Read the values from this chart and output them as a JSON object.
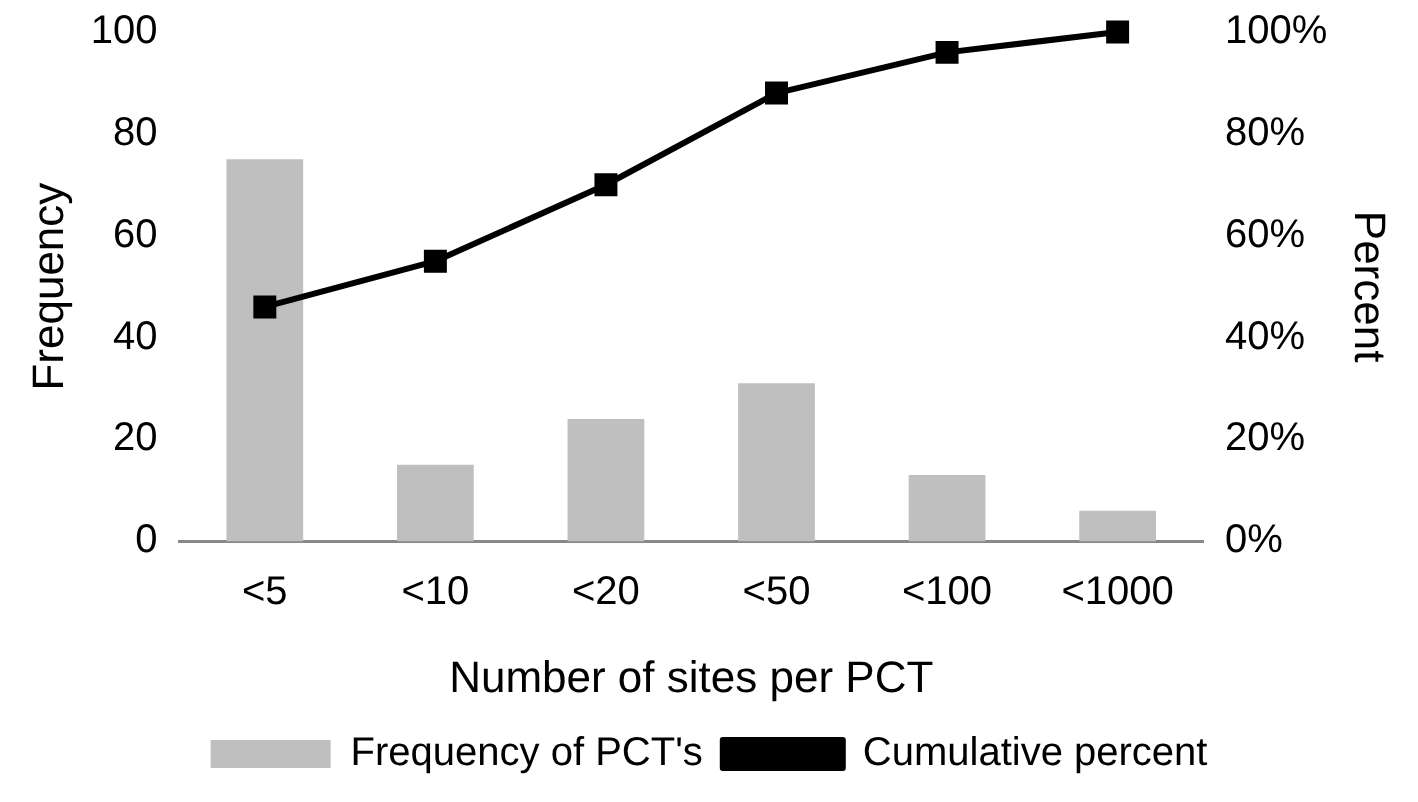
{
  "chart_data": {
    "type": "bar",
    "xlabel": "Number of sites per PCT",
    "ylabel": "Frequency",
    "y2label": "Percent",
    "categories": [
      "<5",
      "<10",
      "<20",
      "<50",
      "<100",
      "<1000"
    ],
    "series": [
      {
        "name": "Frequency of PCT's",
        "color": "#bfbfbf",
        "values": [
          75,
          15,
          24,
          31,
          13,
          6
        ]
      },
      {
        "name": "Cumulative percent",
        "type": "line",
        "axis": "y2",
        "color": "#000000",
        "marker": "square",
        "values": [
          46,
          55,
          70,
          88,
          96,
          100
        ]
      }
    ],
    "ylim": [
      0,
      100
    ],
    "yticks": [
      0,
      20,
      40,
      60,
      80,
      100
    ],
    "y2lim": [
      0,
      100
    ],
    "y2ticks": [
      {
        "value": 0,
        "label": "0%"
      },
      {
        "value": 20,
        "label": "20%"
      },
      {
        "value": 40,
        "label": "40%"
      },
      {
        "value": 60,
        "label": "60%"
      },
      {
        "value": 80,
        "label": "80%"
      },
      {
        "value": 100,
        "label": "100%"
      }
    ],
    "grid": false,
    "legend": "bottom"
  }
}
